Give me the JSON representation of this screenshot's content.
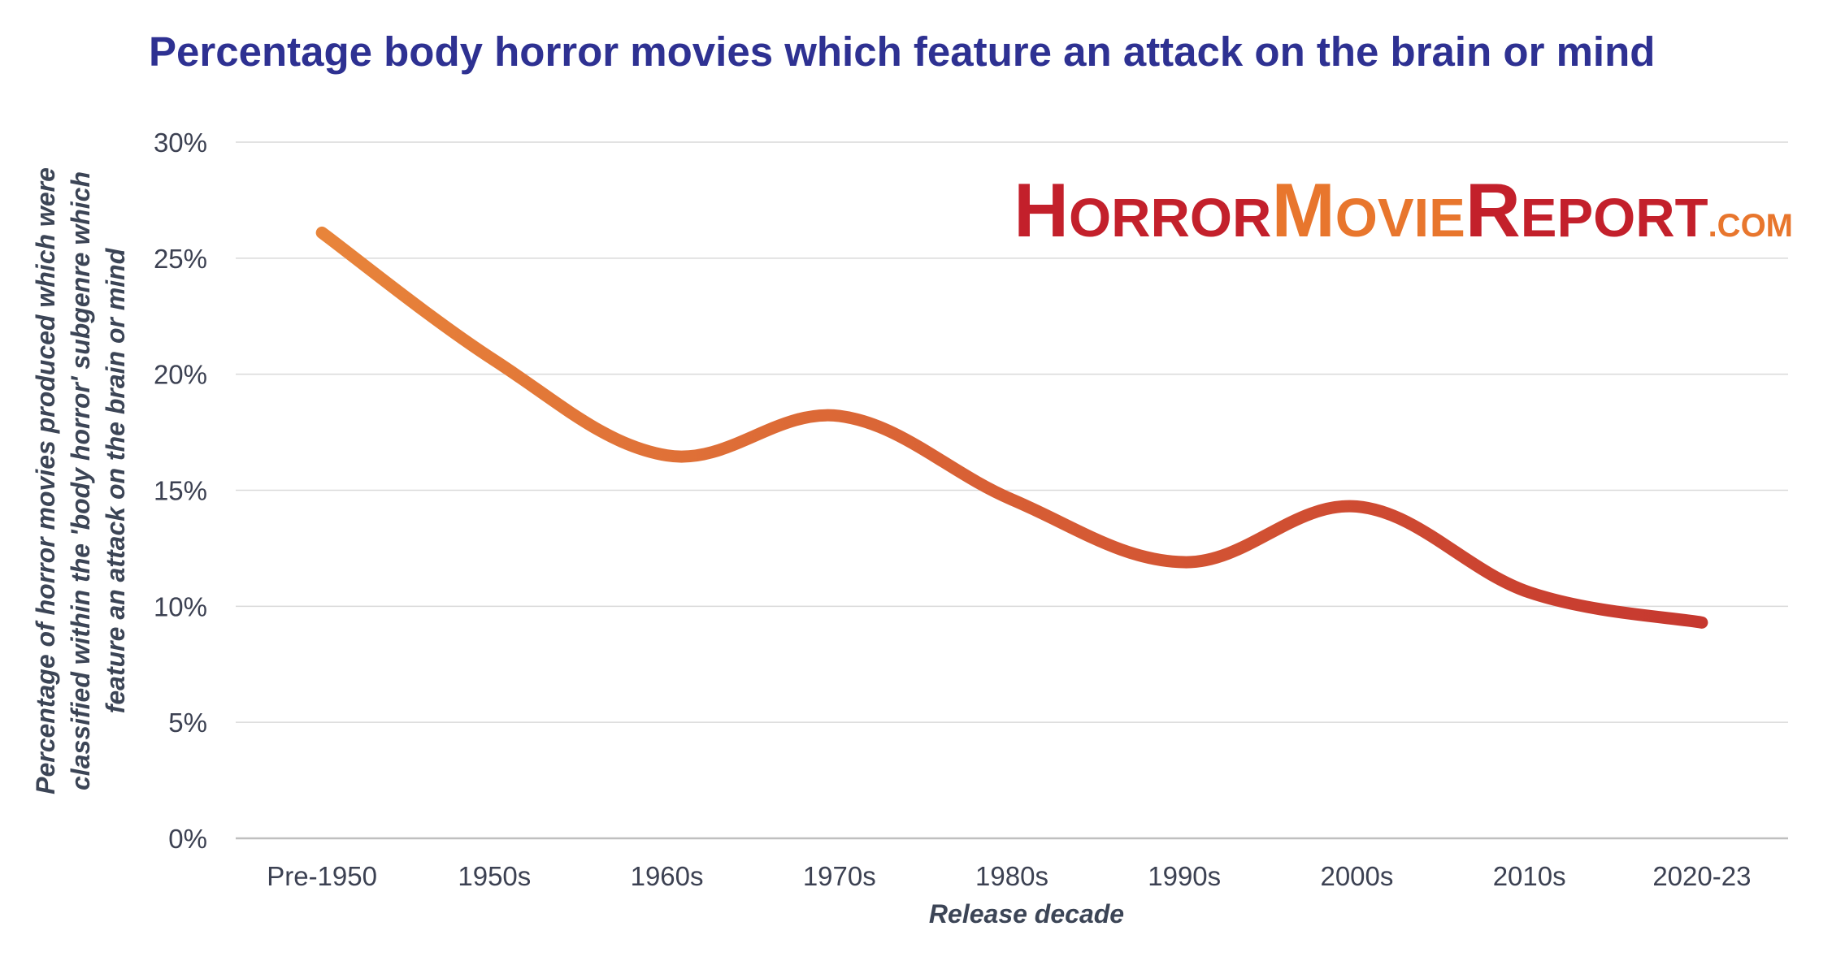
{
  "chart_data": {
    "type": "line",
    "title": "Percentage body horror movies which feature an attack on the brain or mind",
    "xlabel": "Release decade",
    "ylabel_lines": [
      "Percentage of horror movies produced which were",
      "classified within the 'body horror' subgenre which",
      "feature an attack on the brain or mind"
    ],
    "categories": [
      "Pre-1950",
      "1950s",
      "1960s",
      "1970s",
      "1980s",
      "1990s",
      "2000s",
      "2010s",
      "2020-23"
    ],
    "series": [
      {
        "values": [
          26.1,
          20.6,
          16.5,
          18.2,
          14.6,
          11.9,
          14.3,
          10.6,
          9.3
        ]
      }
    ],
    "ylim": [
      0,
      30
    ],
    "yticks": [
      0,
      5,
      10,
      15,
      20,
      25,
      30
    ],
    "ytick_labels": [
      "0%",
      "5%",
      "10%",
      "15%",
      "20%",
      "25%",
      "30%"
    ],
    "grid": "horizontal",
    "line_gradient": [
      "#e8843a",
      "#c6382f"
    ],
    "logo": {
      "parts": [
        {
          "text": "H",
          "size": "big",
          "color": "red"
        },
        {
          "text": "ORROR",
          "size": "small",
          "color": "red"
        },
        {
          "text": "M",
          "size": "big",
          "color": "orange"
        },
        {
          "text": "OVIE",
          "size": "small",
          "color": "orange"
        },
        {
          "text": "R",
          "size": "big",
          "color": "red"
        },
        {
          "text": "EPORT",
          "size": "small",
          "color": "red"
        },
        {
          "text": ".COM",
          "size": "com",
          "color": "orange"
        }
      ]
    }
  }
}
